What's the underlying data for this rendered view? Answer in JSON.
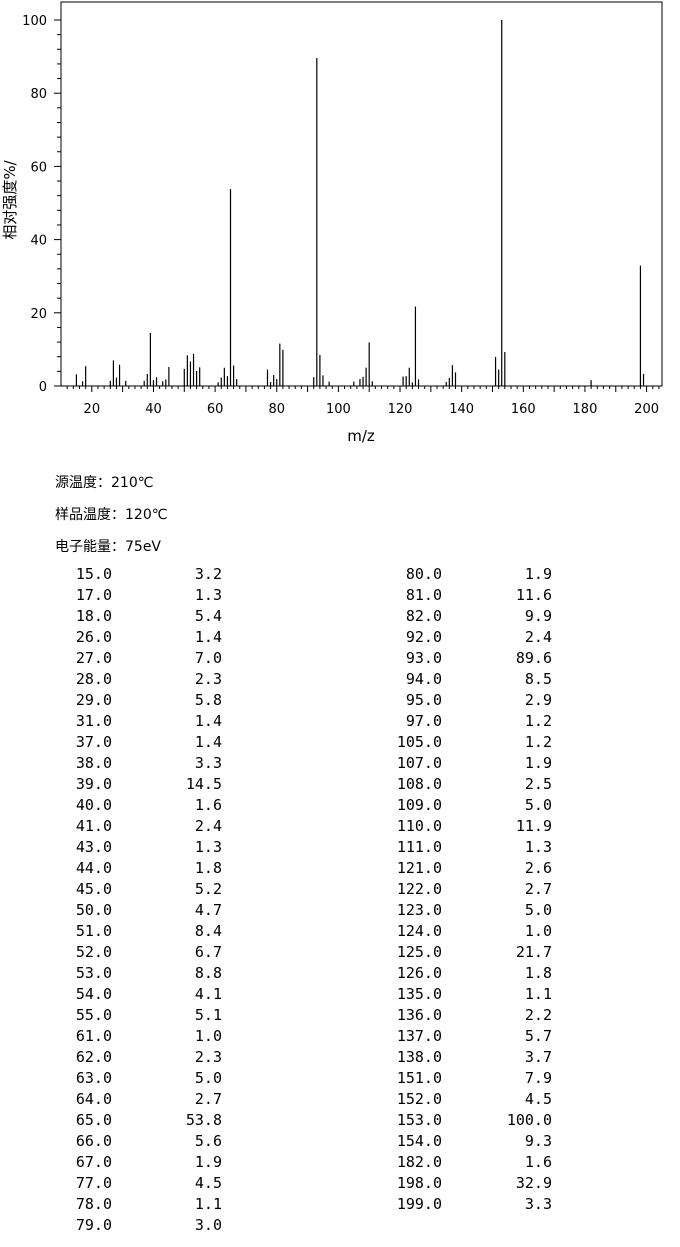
{
  "chart_data": {
    "type": "bar",
    "xlabel": "m/z",
    "ylabel": "相对强度%/",
    "xlim": [
      10,
      205
    ],
    "ylim": [
      0,
      100
    ],
    "x_ticks": [
      "20",
      "40",
      "60",
      "80",
      "100",
      "120",
      "140",
      "160",
      "180",
      "200"
    ],
    "y_ticks": [
      "0",
      "20",
      "40",
      "60",
      "80",
      "100"
    ],
    "grid": false,
    "x": [
      15,
      17,
      18,
      26,
      27,
      28,
      29,
      31,
      37,
      38,
      39,
      40,
      41,
      43,
      44,
      45,
      50,
      51,
      52,
      53,
      54,
      55,
      61,
      62,
      63,
      64,
      65,
      66,
      67,
      77,
      78,
      79,
      80,
      81,
      82,
      92,
      93,
      94,
      95,
      97,
      105,
      107,
      108,
      109,
      110,
      111,
      121,
      122,
      123,
      124,
      125,
      126,
      135,
      136,
      137,
      138,
      151,
      152,
      153,
      154,
      182,
      198,
      199
    ],
    "values": [
      3.2,
      1.3,
      5.4,
      1.4,
      7.0,
      2.3,
      5.8,
      1.4,
      1.4,
      3.3,
      14.5,
      1.6,
      2.4,
      1.3,
      1.8,
      5.2,
      4.7,
      8.4,
      6.7,
      8.8,
      4.1,
      5.1,
      1.0,
      2.3,
      5.0,
      2.7,
      53.8,
      5.6,
      1.9,
      4.5,
      1.1,
      3.0,
      1.9,
      11.6,
      9.9,
      2.4,
      89.6,
      8.5,
      2.9,
      1.2,
      1.2,
      1.9,
      2.5,
      5.0,
      11.9,
      1.3,
      2.6,
      2.7,
      5.0,
      1.0,
      21.7,
      1.8,
      1.1,
      2.2,
      5.7,
      3.7,
      7.9,
      4.5,
      100.0,
      9.3,
      1.6,
      32.9,
      3.3
    ]
  },
  "conditions": {
    "source_temp": "源温度：210℃",
    "sample_temp": "样品温度：120℃",
    "electron_energy": "电子能量：75eV"
  },
  "table_left": [
    {
      "mz": "15.0",
      "ab": "3.2"
    },
    {
      "mz": "17.0",
      "ab": "1.3"
    },
    {
      "mz": "18.0",
      "ab": "5.4"
    },
    {
      "mz": "26.0",
      "ab": "1.4"
    },
    {
      "mz": "27.0",
      "ab": "7.0"
    },
    {
      "mz": "28.0",
      "ab": "2.3"
    },
    {
      "mz": "29.0",
      "ab": "5.8"
    },
    {
      "mz": "31.0",
      "ab": "1.4"
    },
    {
      "mz": "37.0",
      "ab": "1.4"
    },
    {
      "mz": "38.0",
      "ab": "3.3"
    },
    {
      "mz": "39.0",
      "ab": "14.5"
    },
    {
      "mz": "40.0",
      "ab": "1.6"
    },
    {
      "mz": "41.0",
      "ab": "2.4"
    },
    {
      "mz": "43.0",
      "ab": "1.3"
    },
    {
      "mz": "44.0",
      "ab": "1.8"
    },
    {
      "mz": "45.0",
      "ab": "5.2"
    },
    {
      "mz": "50.0",
      "ab": "4.7"
    },
    {
      "mz": "51.0",
      "ab": "8.4"
    },
    {
      "mz": "52.0",
      "ab": "6.7"
    },
    {
      "mz": "53.0",
      "ab": "8.8"
    },
    {
      "mz": "54.0",
      "ab": "4.1"
    },
    {
      "mz": "55.0",
      "ab": "5.1"
    },
    {
      "mz": "61.0",
      "ab": "1.0"
    },
    {
      "mz": "62.0",
      "ab": "2.3"
    },
    {
      "mz": "63.0",
      "ab": "5.0"
    },
    {
      "mz": "64.0",
      "ab": "2.7"
    },
    {
      "mz": "65.0",
      "ab": "53.8"
    },
    {
      "mz": "66.0",
      "ab": "5.6"
    },
    {
      "mz": "67.0",
      "ab": "1.9"
    },
    {
      "mz": "77.0",
      "ab": "4.5"
    },
    {
      "mz": "78.0",
      "ab": "1.1"
    },
    {
      "mz": "79.0",
      "ab": "3.0"
    }
  ],
  "table_right": [
    {
      "mz": "80.0",
      "ab": "1.9"
    },
    {
      "mz": "81.0",
      "ab": "11.6"
    },
    {
      "mz": "82.0",
      "ab": "9.9"
    },
    {
      "mz": "92.0",
      "ab": "2.4"
    },
    {
      "mz": "93.0",
      "ab": "89.6"
    },
    {
      "mz": "94.0",
      "ab": "8.5"
    },
    {
      "mz": "95.0",
      "ab": "2.9"
    },
    {
      "mz": "97.0",
      "ab": "1.2"
    },
    {
      "mz": "105.0",
      "ab": "1.2"
    },
    {
      "mz": "107.0",
      "ab": "1.9"
    },
    {
      "mz": "108.0",
      "ab": "2.5"
    },
    {
      "mz": "109.0",
      "ab": "5.0"
    },
    {
      "mz": "110.0",
      "ab": "11.9"
    },
    {
      "mz": "111.0",
      "ab": "1.3"
    },
    {
      "mz": "121.0",
      "ab": "2.6"
    },
    {
      "mz": "122.0",
      "ab": "2.7"
    },
    {
      "mz": "123.0",
      "ab": "5.0"
    },
    {
      "mz": "124.0",
      "ab": "1.0"
    },
    {
      "mz": "125.0",
      "ab": "21.7"
    },
    {
      "mz": "126.0",
      "ab": "1.8"
    },
    {
      "mz": "135.0",
      "ab": "1.1"
    },
    {
      "mz": "136.0",
      "ab": "2.2"
    },
    {
      "mz": "137.0",
      "ab": "5.7"
    },
    {
      "mz": "138.0",
      "ab": "3.7"
    },
    {
      "mz": "151.0",
      "ab": "7.9"
    },
    {
      "mz": "152.0",
      "ab": "4.5"
    },
    {
      "mz": "153.0",
      "ab": "100.0"
    },
    {
      "mz": "154.0",
      "ab": "9.3"
    },
    {
      "mz": "182.0",
      "ab": "1.6"
    },
    {
      "mz": "198.0",
      "ab": "32.9"
    },
    {
      "mz": "199.0",
      "ab": "3.3"
    }
  ]
}
